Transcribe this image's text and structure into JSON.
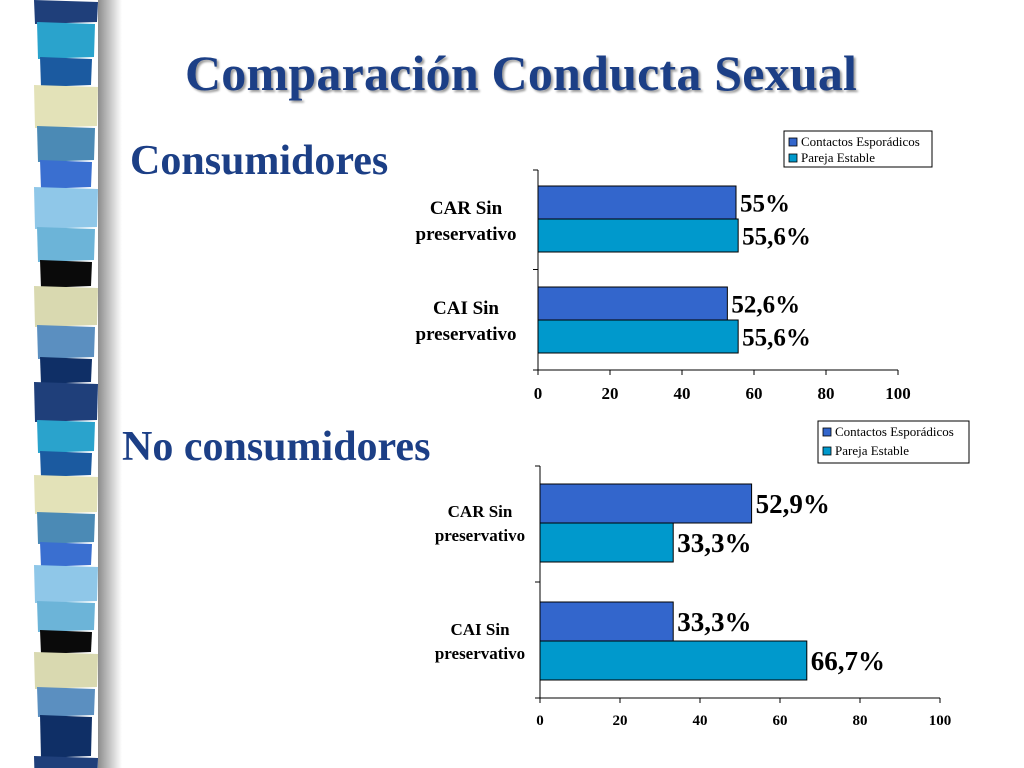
{
  "title": "Comparación Conducta Sexual",
  "sections": [
    {
      "label": "Consumidores"
    },
    {
      "label": "No consumidores"
    }
  ],
  "colors": {
    "title": "#1c3f86",
    "series_esporadicos": "#3366cc",
    "series_estable": "#0099cc"
  },
  "chart_data": [
    {
      "type": "bar",
      "orientation": "horizontal",
      "categories": [
        "CAR Sin preservativo",
        "CAI Sin preservativo"
      ],
      "series": [
        {
          "name": "Contactos Esporádicos",
          "values": [
            55,
            52.6
          ],
          "labels": [
            "55%",
            "52,6%"
          ]
        },
        {
          "name": "Pareja Estable",
          "values": [
            55.6,
            55.6
          ],
          "labels": [
            "55,6%",
            "55,6%"
          ]
        }
      ],
      "xlim": [
        0,
        100
      ],
      "xticks": [
        "0",
        "20",
        "40",
        "60",
        "80",
        "100"
      ],
      "legend": "top-right"
    },
    {
      "type": "bar",
      "orientation": "horizontal",
      "categories": [
        "CAR Sin preservativo",
        "CAI Sin preservativo"
      ],
      "series": [
        {
          "name": "Contactos Esporádicos",
          "values": [
            52.9,
            33.3
          ],
          "labels": [
            "52,9%",
            "33,3%"
          ]
        },
        {
          "name": "Pareja Estable",
          "values": [
            33.3,
            66.7
          ],
          "labels": [
            "33,3%",
            "66,7%"
          ]
        }
      ],
      "xlim": [
        0,
        100
      ],
      "xticks": [
        "0",
        "20",
        "40",
        "60",
        "80",
        "100"
      ],
      "legend": "top-right"
    }
  ]
}
